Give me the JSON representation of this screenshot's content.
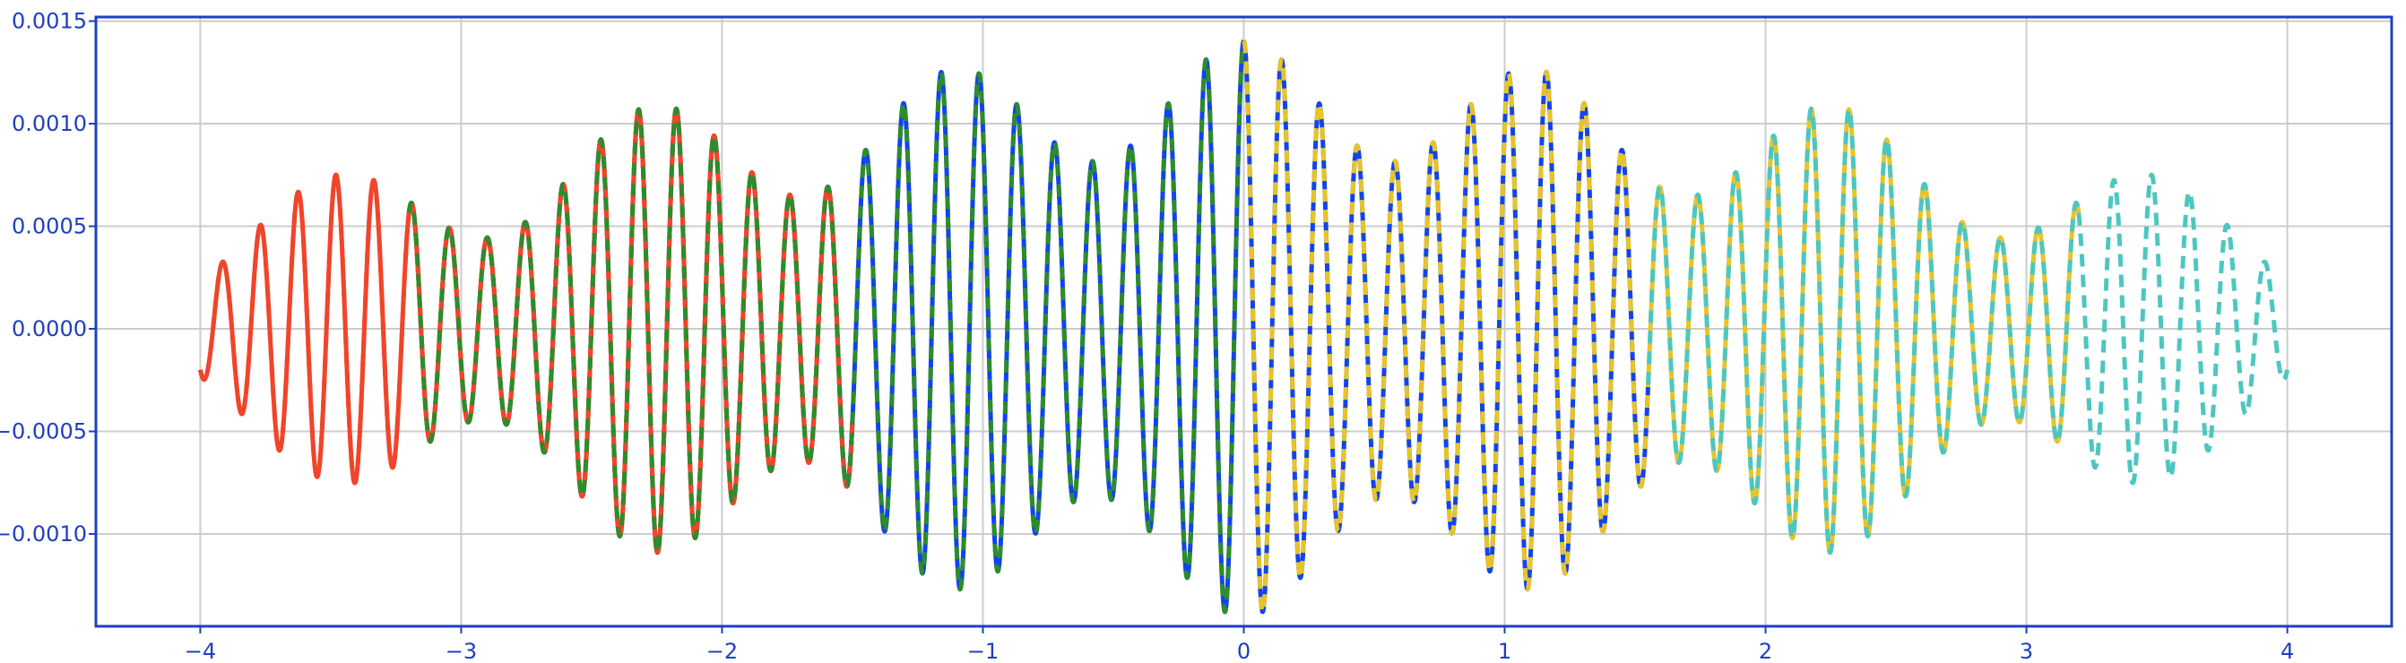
{
  "chart_data": {
    "type": "line",
    "title": "",
    "xlabel": "",
    "ylabel": "",
    "xlim": [
      -4.4,
      4.4
    ],
    "ylim": [
      -0.00145,
      0.00152
    ],
    "grid": true,
    "x_ticks": [
      -4,
      -3,
      -2,
      -1,
      0,
      1,
      2,
      3,
      4
    ],
    "x_tick_labels": [
      "−4",
      "−3",
      "−2",
      "−1",
      "0",
      "1",
      "2",
      "3",
      "4"
    ],
    "y_ticks": [
      0.0015,
      0.001,
      0.0005,
      0.0,
      -0.0005,
      -0.001
    ],
    "y_tick_labels": [
      "0.0015",
      "0.0010",
      "0.0005",
      "0.0000",
      "−0.0005",
      "−0.0010"
    ],
    "signal": {
      "description": "symmetric oscillatory signal; envelope lobes with peak amplitudes listed, carrier period ~0.145",
      "envelope_lobes": [
        {
          "center": -3.45,
          "amplitude": 0.00075
        },
        {
          "center": -2.25,
          "amplitude": 0.00108
        },
        {
          "center": -1.1,
          "amplitude": 0.00125
        },
        {
          "center": 0.0,
          "amplitude": 0.00138
        },
        {
          "center": 1.1,
          "amplitude": 0.00125
        },
        {
          "center": 2.25,
          "amplitude": 0.00108
        },
        {
          "center": 3.45,
          "amplitude": 0.00075
        }
      ],
      "carrier_period": 0.145
    },
    "series": [
      {
        "x_range": [
          -4.0,
          -1.5
        ],
        "color": "#f0452b",
        "style": "solid",
        "overlay": {
          "color": "#f0452b",
          "style": "dashed"
        }
      },
      {
        "x_range": [
          -3.2,
          -1.55
        ],
        "color": "#f0452b",
        "style": "solid",
        "overlay": {
          "color": "#2e8b2e",
          "style": "dashed"
        }
      },
      {
        "x_range": [
          -1.55,
          0.0
        ],
        "color": "#1144ee",
        "style": "solid",
        "overlay": {
          "color": "#2e8b2e",
          "style": "dashed"
        }
      },
      {
        "x_range": [
          0.0,
          1.55
        ],
        "color": "#1144ee",
        "style": "solid",
        "overlay": {
          "color": "#e6c42a",
          "style": "dashed"
        }
      },
      {
        "x_range": [
          1.55,
          3.2
        ],
        "color": "#e6c42a",
        "style": "solid",
        "overlay": {
          "color": "#4cc7c0",
          "style": "dashed"
        }
      },
      {
        "x_range": [
          3.2,
          4.0
        ],
        "color": "#4cc7c0",
        "style": "dashed",
        "overlay": null
      }
    ],
    "colors": {
      "axis": "#1f3fbf",
      "grid": "#cccccc"
    }
  }
}
